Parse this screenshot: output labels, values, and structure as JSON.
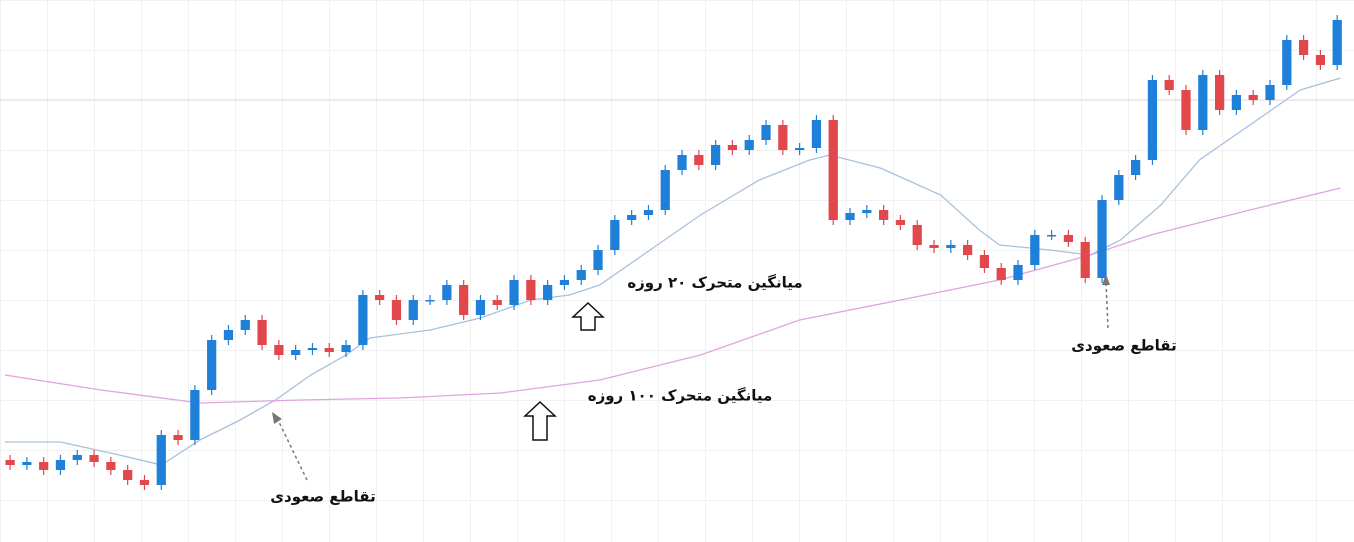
{
  "chart_data": {
    "type": "candlestick",
    "up_color": "#1e80d8",
    "down_color": "#e2474b",
    "xlim": [
      -0.6,
      80
    ],
    "ylim": [
      0,
      542
    ],
    "open": [
      82,
      77,
      80,
      72,
      82,
      87,
      80,
      72,
      62,
      57,
      107,
      102,
      152,
      202,
      212,
      222,
      197,
      187,
      192,
      194,
      190,
      197,
      247,
      242,
      222,
      242,
      242,
      257,
      227,
      242,
      237,
      262,
      242,
      257,
      262,
      272,
      292,
      322,
      327,
      332,
      372,
      387,
      377,
      397,
      392,
      402,
      417,
      392,
      394,
      422,
      322,
      329,
      332,
      322,
      317,
      297,
      294,
      297,
      287,
      274,
      262,
      277,
      307,
      307,
      300,
      264,
      342,
      367,
      382,
      462,
      452,
      412,
      467,
      432,
      447,
      442,
      457,
      502,
      487,
      477
    ],
    "high": [
      87,
      85,
      85,
      87,
      92,
      92,
      85,
      77,
      67,
      112,
      112,
      157,
      207,
      217,
      227,
      227,
      202,
      197,
      199,
      199,
      202,
      252,
      252,
      247,
      247,
      247,
      262,
      262,
      247,
      247,
      267,
      267,
      262,
      267,
      277,
      297,
      327,
      332,
      337,
      377,
      392,
      392,
      402,
      402,
      407,
      422,
      422,
      399,
      427,
      427,
      334,
      337,
      337,
      327,
      322,
      302,
      302,
      302,
      292,
      279,
      282,
      312,
      312,
      312,
      305,
      347,
      372,
      387,
      467,
      467,
      457,
      472,
      472,
      452,
      452,
      462,
      507,
      507,
      492,
      527
    ],
    "low": [
      72,
      72,
      67,
      67,
      77,
      75,
      67,
      57,
      52,
      52,
      97,
      97,
      147,
      197,
      207,
      192,
      182,
      182,
      187,
      185,
      185,
      192,
      237,
      217,
      217,
      237,
      237,
      222,
      222,
      232,
      232,
      237,
      237,
      252,
      257,
      267,
      287,
      317,
      322,
      327,
      367,
      372,
      372,
      387,
      387,
      397,
      387,
      387,
      389,
      317,
      317,
      324,
      317,
      312,
      292,
      289,
      289,
      282,
      269,
      257,
      257,
      272,
      302,
      295,
      259,
      259,
      337,
      362,
      377,
      447,
      407,
      407,
      427,
      427,
      437,
      437,
      452,
      482,
      472,
      472
    ],
    "close": [
      77,
      80,
      72,
      82,
      87,
      80,
      72,
      62,
      57,
      107,
      102,
      152,
      202,
      212,
      222,
      197,
      187,
      192,
      194,
      190,
      197,
      247,
      242,
      222,
      242,
      242,
      257,
      227,
      242,
      237,
      262,
      242,
      257,
      262,
      272,
      292,
      322,
      327,
      332,
      372,
      387,
      377,
      397,
      392,
      402,
      417,
      392,
      394,
      422,
      322,
      329,
      332,
      322,
      317,
      297,
      294,
      297,
      287,
      274,
      262,
      277,
      307,
      307,
      300,
      264,
      342,
      367,
      382,
      462,
      452,
      412,
      467,
      432,
      447,
      442,
      457,
      502,
      487,
      477,
      522
    ],
    "lines": [
      {
        "name": "میانگین متحرک ۲۰ روزه",
        "color": "#a9c0dc",
        "x": [
          -0.3,
          3,
          6.5,
          9,
          11.3,
          13.7,
          15.8,
          17.9,
          20,
          21.4,
          25,
          28,
          31,
          33.3,
          35.1,
          38.1,
          41.1,
          44.6,
          47.6,
          48.8,
          51.8,
          55.4,
          57.7,
          58.9,
          61.9,
          64.3,
          66.1,
          68.5,
          70.8,
          74.4,
          76.8,
          79.2
        ],
        "values": [
          100,
          100,
          87,
          77,
          102,
          122,
          142,
          167,
          187,
          204,
          212,
          224,
          242,
          247,
          257,
          292,
          327,
          362,
          382,
          387,
          374,
          347,
          312,
          297,
          292,
          287,
          302,
          337,
          382,
          424,
          452,
          464
        ]
      },
      {
        "name": "میانگین متحرک ۱۰۰ روزه",
        "color": "#e2a3e0",
        "x": [
          -0.3,
          5.4,
          11.3,
          17.3,
          23.2,
          29.2,
          35.1,
          41.1,
          47,
          53,
          58.9,
          64.3,
          67.9,
          73.8,
          79.2
        ],
        "values": [
          167,
          152,
          139,
          142,
          144,
          149,
          162,
          187,
          222,
          242,
          262,
          287,
          307,
          332,
          354
        ]
      }
    ],
    "annotations": [
      "تقاطع صعودی",
      "تقاطع صعودی"
    ]
  }
}
